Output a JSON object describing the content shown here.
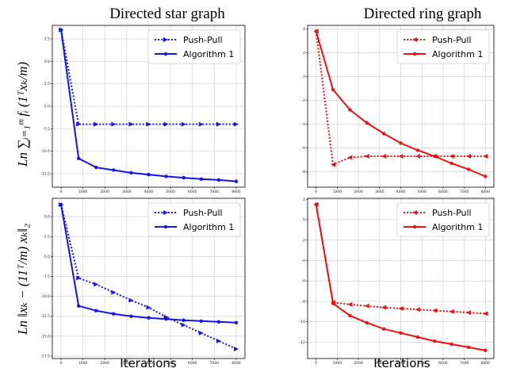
{
  "columns": [
    "Directed star graph",
    "Directed ring graph"
  ],
  "xlabel": "Iterations",
  "ylabels": {
    "top": "Ln ∑ᵢ₌₁ᵐ fᵢ (1ᵀxₖ/m)",
    "bottom": "Ln ‖xₖ − (11ᵀ/m) xₖ‖₂"
  },
  "legend": [
    "Push-Pull",
    "Algorithm 1"
  ],
  "colors": {
    "blue": "#1515e6",
    "red": "#ee1111",
    "grid": "#d2d2d2"
  },
  "chart_data": [
    {
      "type": "line",
      "title": "Directed star graph",
      "xlabel": "",
      "ylabel": "Ln ∑ fᵢ (1ᵀxₖ/m)",
      "xlim": [
        -400,
        8400
      ],
      "ylim": [
        -14,
        4
      ],
      "xticks": [
        0,
        1000,
        2000,
        3000,
        4000,
        5000,
        6000,
        7000,
        8000
      ],
      "yticks": [
        2.5,
        0.0,
        -2.5,
        -5.0,
        -7.5,
        -10.0,
        -12.5
      ],
      "grid": true,
      "legend_position": "top-right",
      "color": "#1515e6",
      "series": [
        {
          "name": "Push-Pull",
          "style": "dotted",
          "marker": "right-triangle",
          "x": [
            0,
            800,
            1600,
            2400,
            3200,
            4000,
            4800,
            5600,
            6400,
            7200,
            8000
          ],
          "y": [
            3.5,
            -7.0,
            -7.0,
            -7.0,
            -7.0,
            -7.0,
            -7.0,
            -7.0,
            -7.0,
            -7.0,
            -7.0
          ]
        },
        {
          "name": "Algorithm 1",
          "style": "solid",
          "marker": "circle",
          "x": [
            0,
            800,
            1600,
            2400,
            3200,
            4000,
            4800,
            5600,
            6400,
            7200,
            8000
          ],
          "y": [
            3.5,
            -10.8,
            -11.8,
            -12.1,
            -12.4,
            -12.6,
            -12.8,
            -12.95,
            -13.1,
            -13.2,
            -13.35
          ]
        }
      ]
    },
    {
      "type": "line",
      "title": "Directed ring graph",
      "xlabel": "",
      "ylabel": "",
      "xlim": [
        -400,
        8400
      ],
      "ylim": [
        -9.3,
        4.3
      ],
      "xticks": [
        0,
        1000,
        2000,
        3000,
        4000,
        5000,
        6000,
        7000,
        8000
      ],
      "yticks": [
        4,
        2,
        0,
        -2,
        -4,
        -6,
        -8
      ],
      "grid": true,
      "legend_position": "top-right",
      "color": "#ee1111",
      "series": [
        {
          "name": "Push-Pull",
          "style": "dotted",
          "marker": "left-triangle",
          "x": [
            0,
            800,
            1600,
            2400,
            3200,
            4000,
            4800,
            5600,
            6400,
            7200,
            8000
          ],
          "y": [
            3.8,
            -7.4,
            -6.8,
            -6.7,
            -6.7,
            -6.7,
            -6.7,
            -6.7,
            -6.7,
            -6.7,
            -6.7
          ]
        },
        {
          "name": "Algorithm 1",
          "style": "solid",
          "marker": "circle",
          "x": [
            0,
            800,
            1600,
            2400,
            3200,
            4000,
            4800,
            5600,
            6400,
            7200,
            8000
          ],
          "y": [
            3.8,
            -1.1,
            -2.8,
            -3.9,
            -4.8,
            -5.6,
            -6.2,
            -6.7,
            -7.3,
            -7.8,
            -8.4
          ]
        }
      ]
    },
    {
      "type": "line",
      "title": "",
      "xlabel": "Iterations",
      "ylabel": "Ln ‖xₖ − (11ᵀ/m) xₖ‖₂",
      "xlim": [
        -400,
        8400
      ],
      "ylim": [
        -17.8,
        2.3
      ],
      "xticks": [
        0,
        1000,
        2000,
        3000,
        4000,
        5000,
        6000,
        7000,
        8000
      ],
      "yticks": [
        0.0,
        -2.5,
        -5.0,
        -7.5,
        -10.0,
        -12.5,
        -15.0,
        -17.5
      ],
      "grid": true,
      "legend_position": "top-right",
      "color": "#1515e6",
      "series": [
        {
          "name": "Push-Pull",
          "style": "dotted",
          "marker": "right-triangle",
          "x": [
            0,
            800,
            1600,
            2400,
            3200,
            4000,
            4800,
            5600,
            6400,
            7200,
            8000
          ],
          "y": [
            1.5,
            -7.7,
            -8.5,
            -9.5,
            -10.5,
            -11.4,
            -12.6,
            -13.6,
            -14.6,
            -15.6,
            -16.6
          ]
        },
        {
          "name": "Algorithm 1",
          "style": "solid",
          "marker": "circle",
          "x": [
            0,
            800,
            1600,
            2400,
            3200,
            4000,
            4800,
            5600,
            6400,
            7200,
            8000
          ],
          "y": [
            1.5,
            -11.2,
            -11.8,
            -12.2,
            -12.5,
            -12.7,
            -12.85,
            -13.0,
            -13.1,
            -13.2,
            -13.3
          ]
        }
      ]
    },
    {
      "type": "line",
      "title": "",
      "xlabel": "Iterations",
      "ylabel": "",
      "xlim": [
        -400,
        8400
      ],
      "ylim": [
        -13.6,
        2.1
      ],
      "xticks": [
        0,
        1000,
        2000,
        3000,
        4000,
        5000,
        6000,
        7000,
        8000
      ],
      "yticks": [
        2,
        0,
        -2,
        -4,
        -6,
        -8,
        -10,
        -12
      ],
      "grid": true,
      "legend_position": "top-right",
      "color": "#ee1111",
      "series": [
        {
          "name": "Push-Pull",
          "style": "dotted",
          "marker": "left-triangle",
          "x": [
            0,
            800,
            1600,
            2400,
            3200,
            4000,
            4800,
            5600,
            6400,
            7200,
            8000
          ],
          "y": [
            1.5,
            -8.1,
            -8.3,
            -8.45,
            -8.6,
            -8.7,
            -8.8,
            -8.9,
            -9.0,
            -9.1,
            -9.2
          ]
        },
        {
          "name": "Algorithm 1",
          "style": "solid",
          "marker": "circle",
          "x": [
            0,
            800,
            1600,
            2400,
            3200,
            4000,
            4800,
            5600,
            6400,
            7200,
            8000
          ],
          "y": [
            1.5,
            -8.2,
            -9.4,
            -10.1,
            -10.7,
            -11.1,
            -11.5,
            -11.9,
            -12.2,
            -12.5,
            -12.8
          ]
        }
      ]
    }
  ]
}
